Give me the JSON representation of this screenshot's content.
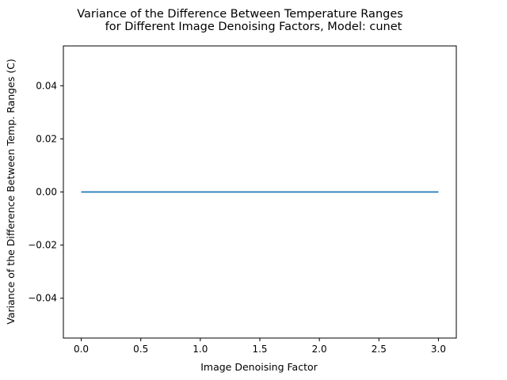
{
  "chart_data": {
    "type": "line",
    "title_lines": [
      "Variance of the Difference Between Temperature Ranges",
      "for Different Image Denoising Factors, Model: cunet"
    ],
    "xlabel": "Image Denoising Factor",
    "ylabel": "Variance of the Difference Between Temp. Ranges (C)",
    "xlim": [
      -0.15,
      3.15
    ],
    "ylim": [
      -0.055,
      0.055
    ],
    "xticks": [
      0.0,
      0.5,
      1.0,
      1.5,
      2.0,
      2.5,
      3.0
    ],
    "xtick_labels": [
      "0.0",
      "0.5",
      "1.0",
      "1.5",
      "2.0",
      "2.5",
      "3.0"
    ],
    "yticks": [
      -0.04,
      -0.02,
      0.0,
      0.02,
      0.04
    ],
    "ytick_labels": [
      "−0.04",
      "−0.02",
      "0.00",
      "0.02",
      "0.04"
    ],
    "grid": false,
    "series": [
      {
        "color": "#1f77b4",
        "x": [
          0.0,
          0.5,
          1.0,
          1.5,
          2.0,
          2.5,
          3.0
        ],
        "y": [
          0.0,
          0.0,
          0.0,
          0.0,
          0.0,
          0.0,
          0.0
        ]
      }
    ]
  }
}
